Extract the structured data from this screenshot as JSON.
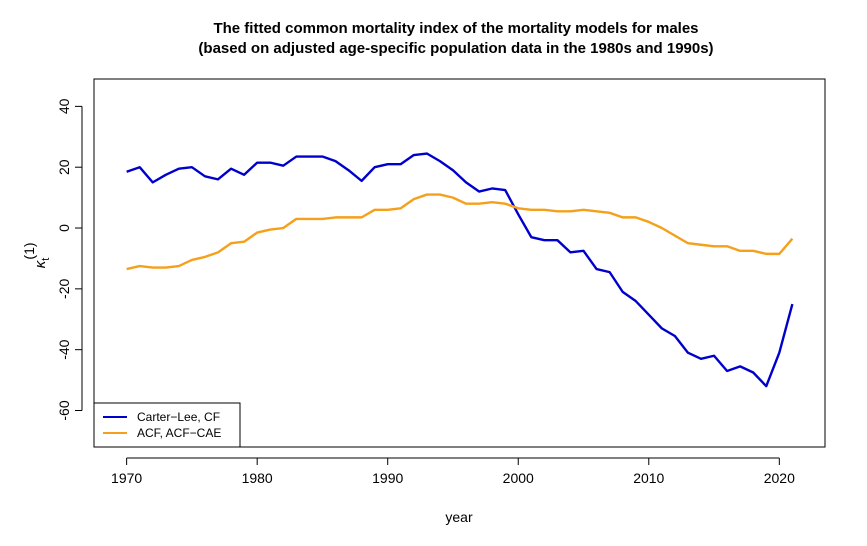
{
  "chart_data": {
    "type": "line",
    "title": "The fitted common mortality index of the mortality models for males",
    "subtitle": "(based on adjusted age-specific population data in the 1980s and 1990s)",
    "xlabel": "year",
    "ylabel_main": "κ",
    "ylabel_sub": "t",
    "ylabel_sup": "(1)",
    "xlim": [
      1967.5,
      2023.5
    ],
    "ylim": [
      -72,
      49
    ],
    "x_ticks": [
      1970,
      1980,
      1990,
      2000,
      2010,
      2020
    ],
    "x_tick_labels": [
      "1970",
      "1980",
      "1990",
      "2000",
      "2010",
      "2020"
    ],
    "y_ticks": [
      -60,
      -40,
      -20,
      0,
      20,
      40
    ],
    "y_tick_labels": [
      "-60",
      "-40",
      "-20",
      "0",
      "20",
      "40"
    ],
    "grid": false,
    "legend_position": "bottom-left",
    "x": [
      1970,
      1971,
      1972,
      1973,
      1974,
      1975,
      1976,
      1977,
      1978,
      1979,
      1980,
      1981,
      1982,
      1983,
      1984,
      1985,
      1986,
      1987,
      1988,
      1989,
      1990,
      1991,
      1992,
      1993,
      1994,
      1995,
      1996,
      1997,
      1998,
      1999,
      2000,
      2001,
      2002,
      2003,
      2004,
      2005,
      2006,
      2007,
      2008,
      2009,
      2010,
      2011,
      2012,
      2013,
      2014,
      2015,
      2016,
      2017,
      2018,
      2019,
      2020,
      2021
    ],
    "series": [
      {
        "name": "Carter−Lee, CF",
        "color": "#0000CD",
        "values": [
          18.5,
          20,
          15,
          17.5,
          19.5,
          20,
          17,
          16,
          19.5,
          17.5,
          21.5,
          21.5,
          20.5,
          23.5,
          23.5,
          23.5,
          22,
          19,
          15.5,
          20,
          21,
          21,
          24,
          24.5,
          22,
          19,
          15,
          12,
          13,
          12.5,
          4.5,
          -3,
          -4,
          -4,
          -8,
          -7.5,
          -13.5,
          -14.5,
          -21,
          -24,
          -28.5,
          -33,
          -35.5,
          -41,
          -43,
          -42,
          -47,
          -45.5,
          -47.5,
          -52,
          -41,
          -25
        ]
      },
      {
        "name": "ACF, ACF−CAE",
        "color": "#F5A01A",
        "values": [
          -13.5,
          -12.5,
          -13,
          -13,
          -12.5,
          -10.5,
          -9.5,
          -8,
          -5,
          -4.5,
          -1.5,
          -0.5,
          0,
          3,
          3,
          3,
          3.5,
          3.5,
          3.5,
          6,
          6,
          6.5,
          9.5,
          11,
          11,
          10,
          8,
          8,
          8.5,
          8,
          6.5,
          6,
          6,
          5.5,
          5.5,
          6,
          5.5,
          5,
          3.5,
          3.5,
          2,
          0,
          -2.5,
          -5,
          -5.5,
          -6,
          -6,
          -7.5,
          -7.5,
          -8.5,
          -8.5,
          -3.5
        ]
      }
    ]
  }
}
